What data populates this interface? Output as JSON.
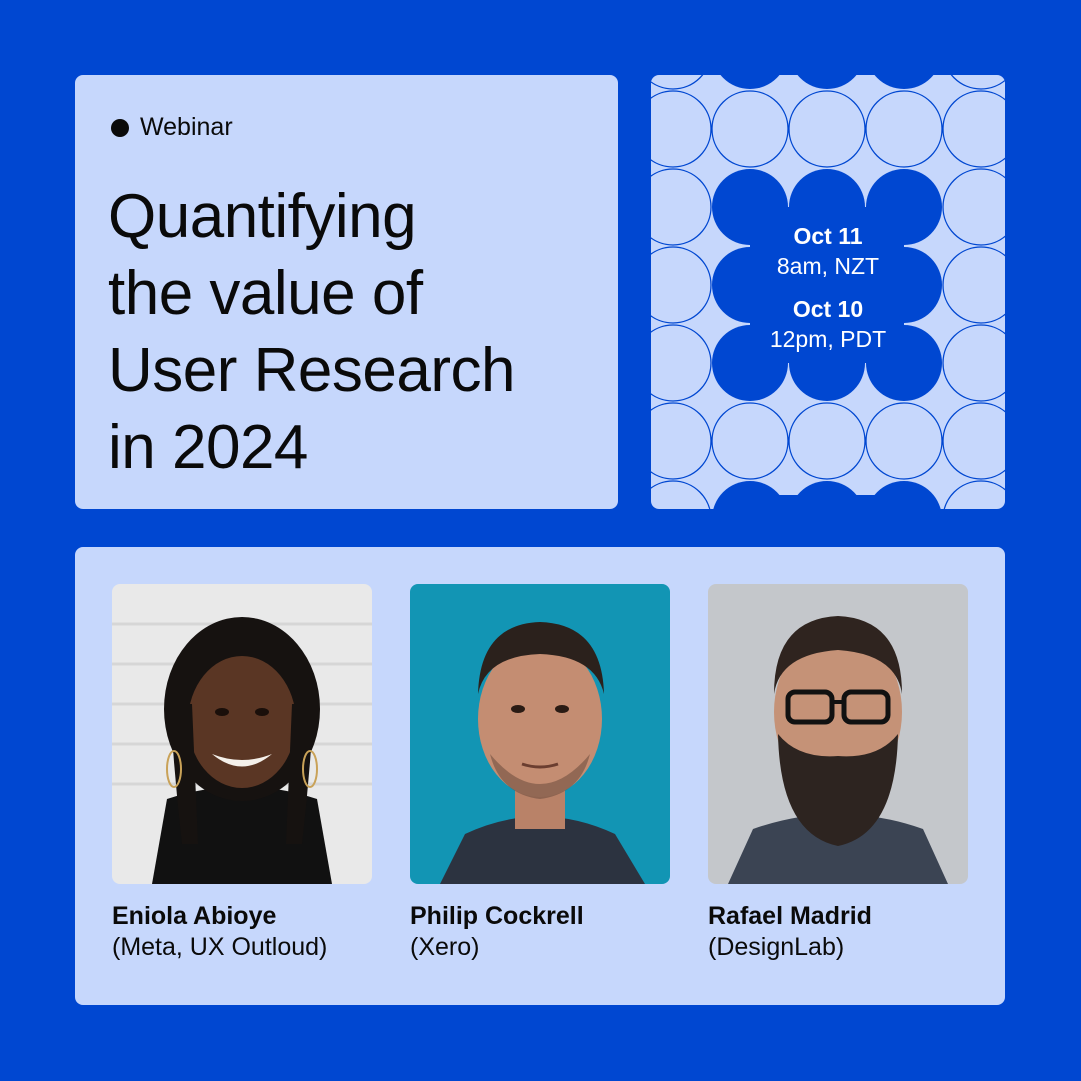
{
  "event": {
    "tag": "Webinar",
    "title_lines": [
      "Quantifying",
      "the value of",
      "User Research",
      "in 2024"
    ]
  },
  "schedule": [
    {
      "date": "Oct 11",
      "time": "8am, NZT"
    },
    {
      "date": "Oct 10",
      "time": "12pm, PDT"
    }
  ],
  "speakers": [
    {
      "name": "Eniola Abioye",
      "org": "(Meta, UX Outloud)",
      "photo": "speaker-photo-eniola"
    },
    {
      "name": "Philip Cockrell",
      "org": "(Xero)",
      "photo": "speaker-photo-philip"
    },
    {
      "name": "Rafael Madrid",
      "org": "(DesignLab)",
      "photo": "speaker-photo-rafael"
    }
  ],
  "colors": {
    "background": "#0047d1",
    "card": "#c6d7fc",
    "text": "#0a0a0a",
    "accent": "#0047d1"
  }
}
